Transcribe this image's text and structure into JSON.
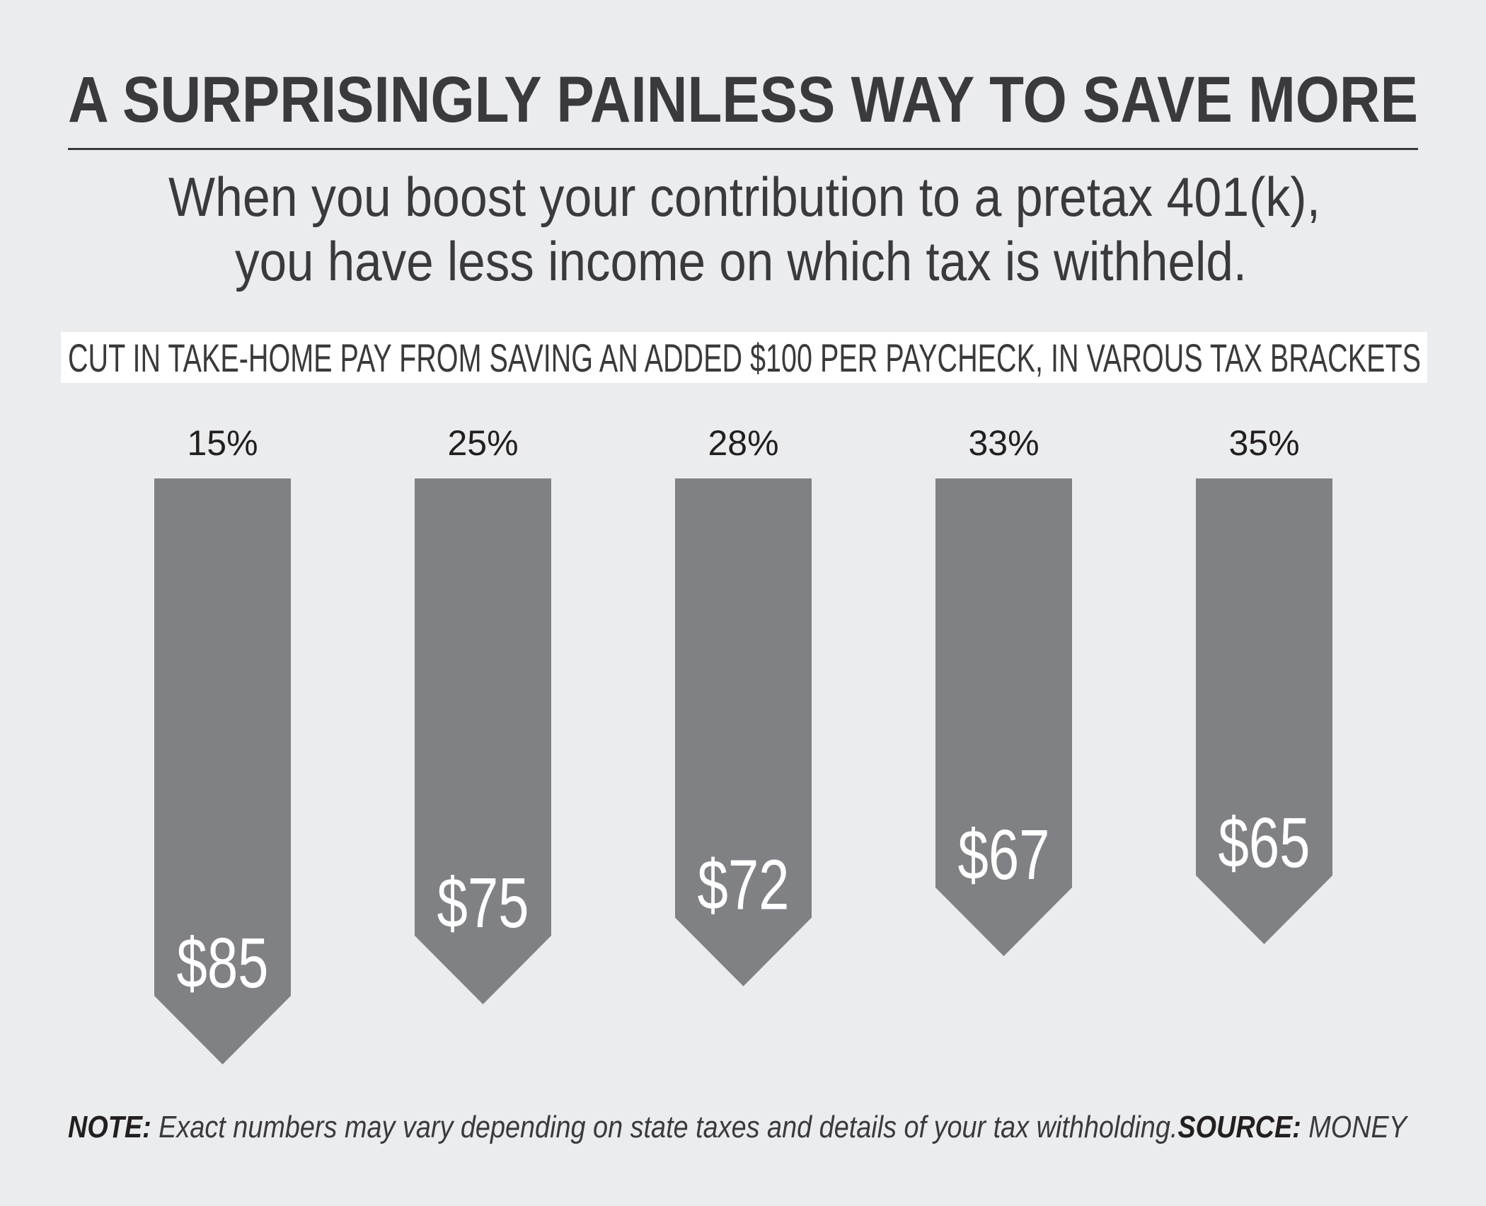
{
  "title": "A SURPRISINGLY PAINLESS WAY TO SAVE MORE",
  "subtitle_lines": [
    "When you boost your contribution to a pretax 401(k),",
    "you have less income on which tax is withheld."
  ],
  "colors": {
    "background": "#ebecee",
    "bar": "#808184",
    "text": "#3a3a3c",
    "banner": "#ffffff",
    "value_label": "#ffffff"
  },
  "chart_data": {
    "type": "bar",
    "title": "CUT IN TAKE-HOME PAY FROM SAVING AN ADDED $100 PER PAYCHECK, IN VAROUS TAX BRACKETS",
    "orientation": "vertical-downward",
    "categories": [
      "15%",
      "25%",
      "28%",
      "33%",
      "35%"
    ],
    "values": [
      85,
      75,
      72,
      67,
      65
    ],
    "value_labels": [
      "$85",
      "$75",
      "$72",
      "$67",
      "$65"
    ],
    "unit": "$",
    "grid": false,
    "legend": "none"
  },
  "note": {
    "label": "NOTE:",
    "text": " Exact numbers may vary depending on state taxes and details of your tax withholding.",
    "source_label": "SOURCE:",
    "source_text": " MONEY"
  }
}
